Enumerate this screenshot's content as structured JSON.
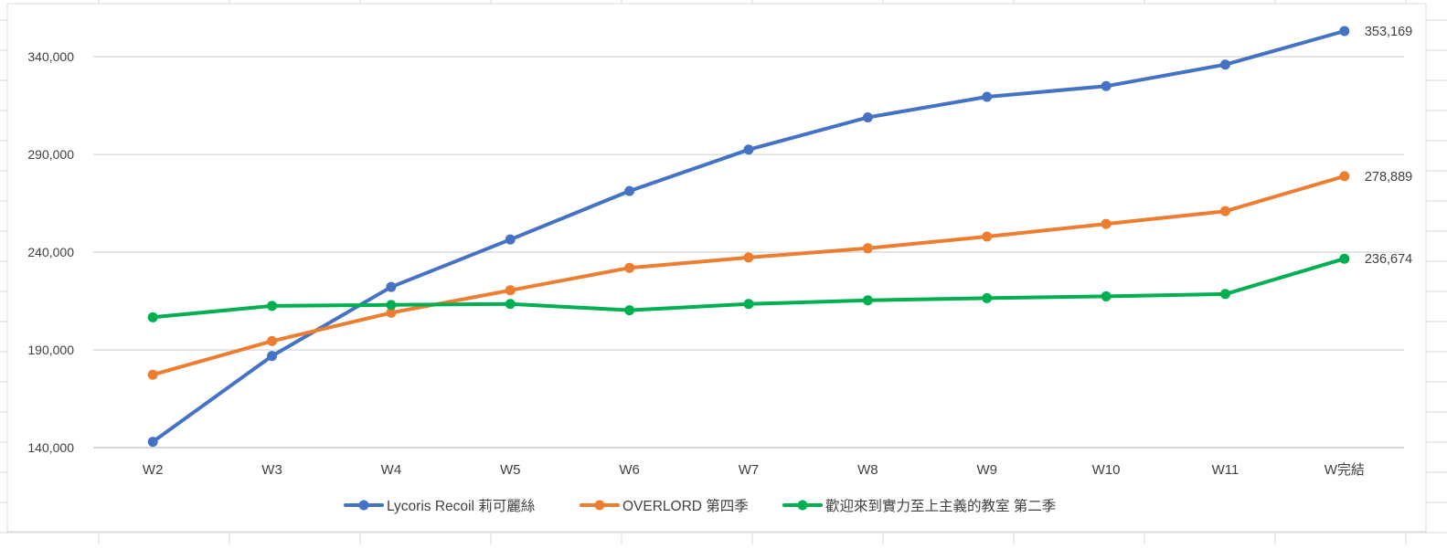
{
  "chart_data": {
    "type": "line",
    "title": "",
    "xlabel": "",
    "ylabel": "",
    "categories": [
      "W2",
      "W3",
      "W4",
      "W5",
      "W6",
      "W7",
      "W8",
      "W9",
      "W10",
      "W11",
      "W完結"
    ],
    "ylim": [
      140000,
      353169
    ],
    "yticks": [
      140000,
      190000,
      240000,
      290000,
      340000
    ],
    "ytick_labels": [
      "140,000",
      "190,000",
      "240,000",
      "290,000",
      "340,000"
    ],
    "grid": true,
    "legend_position": "bottom",
    "series": [
      {
        "name": "Lycoris Recoil 莉可麗絲",
        "color": "#4472C4",
        "values": [
          143000,
          186900,
          222200,
          246500,
          271300,
          292500,
          309000,
          319500,
          325000,
          336000,
          353169
        ],
        "end_label": "353,169"
      },
      {
        "name": "OVERLORD 第四季",
        "color": "#ED7D31",
        "values": [
          177300,
          194500,
          209000,
          220500,
          232000,
          237300,
          242000,
          248000,
          254500,
          261000,
          278889
        ],
        "end_label": "278,889"
      },
      {
        "name": "歡迎來到實力至上主義的教室 第二季",
        "color": "#00B050",
        "values": [
          206700,
          212500,
          213000,
          213500,
          210300,
          213500,
          215400,
          216500,
          217400,
          218600,
          236674
        ],
        "end_label": "236,674"
      }
    ]
  }
}
